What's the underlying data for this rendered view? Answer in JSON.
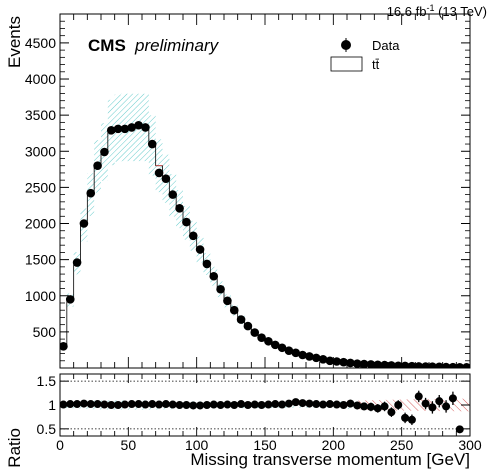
{
  "header": {
    "lumi_value": "16.6 fb",
    "lumi_exp": "-1",
    "lumi_energy": " (13 TeV)"
  },
  "label": {
    "cms": "CMS",
    "prelim": "preliminary"
  },
  "legend": {
    "position": "top-right",
    "data_label": "Data",
    "mc_label": "tt̄"
  },
  "colors": {
    "data": "#000000",
    "mc_line": "#cc2222",
    "unc_top": "#66cccc",
    "unc_ratio_a": "#66cccc",
    "unc_ratio_b": "#cc3333"
  },
  "chart_data": [
    {
      "type": "bar",
      "panel": "main",
      "ylabel": "Events",
      "xlim": [
        0,
        300
      ],
      "ylim": [
        0,
        4900
      ],
      "yticks": [
        500,
        1000,
        1500,
        2000,
        2500,
        3000,
        3500,
        4000,
        4500
      ],
      "yticklabels": [
        "500",
        "1000",
        "1500",
        "2000",
        "2500",
        "3000",
        "3500",
        "4000",
        "4500"
      ],
      "grid": false,
      "bin_width": 5,
      "x": [
        2.5,
        7.5,
        12.5,
        17.5,
        22.5,
        27.5,
        32.5,
        37.5,
        42.5,
        47.5,
        52.5,
        57.5,
        62.5,
        67.5,
        72.5,
        77.5,
        82.5,
        87.5,
        92.5,
        97.5,
        102.5,
        107.5,
        112.5,
        117.5,
        122.5,
        127.5,
        132.5,
        137.5,
        142.5,
        147.5,
        152.5,
        157.5,
        162.5,
        167.5,
        172.5,
        177.5,
        182.5,
        187.5,
        192.5,
        197.5,
        202.5,
        207.5,
        212.5,
        217.5,
        222.5,
        227.5,
        232.5,
        237.5,
        242.5,
        247.5,
        252.5,
        257.5,
        262.5,
        267.5,
        272.5,
        277.5,
        282.5,
        287.5,
        292.5,
        297.5
      ],
      "series": [
        {
          "name": "Data",
          "values": [
            300,
            950,
            1460,
            2000,
            2420,
            2800,
            2990,
            3290,
            3310,
            3310,
            3330,
            3360,
            3330,
            3100,
            2700,
            2620,
            2400,
            2210,
            2020,
            1830,
            1640,
            1440,
            1270,
            1090,
            930,
            800,
            670,
            580,
            490,
            420,
            370,
            320,
            280,
            240,
            210,
            180,
            160,
            140,
            120,
            100,
            90,
            80,
            70,
            60,
            55,
            50,
            45,
            40,
            35,
            30,
            28,
            25,
            22,
            20,
            18,
            16,
            14,
            12,
            10,
            9
          ]
        },
        {
          "name": "tt̄",
          "values": [
            295,
            940,
            1450,
            1980,
            2400,
            2790,
            2990,
            3260,
            3320,
            3330,
            3330,
            3330,
            3330,
            3080,
            2800,
            2620,
            2390,
            2200,
            2010,
            1830,
            1640,
            1440,
            1270,
            1090,
            930,
            800,
            670,
            580,
            490,
            420,
            370,
            320,
            280,
            240,
            210,
            180,
            160,
            140,
            120,
            100,
            90,
            80,
            70,
            60,
            55,
            50,
            45,
            40,
            35,
            30,
            28,
            25,
            22,
            20,
            18,
            16,
            14,
            12,
            10,
            9
          ]
        }
      ]
    },
    {
      "type": "scatter",
      "panel": "ratio",
      "xlabel": "Missing transverse momentum [GeV]",
      "ylabel": "Ratio",
      "xlim": [
        0,
        300
      ],
      "ylim": [
        0.35,
        1.65
      ],
      "yticks": [
        0.5,
        1,
        1.5
      ],
      "yticklabels": [
        "0.5",
        "1",
        "1.5"
      ],
      "xticks": [
        0,
        50,
        100,
        150,
        200,
        250,
        300
      ],
      "xticklabels": [
        "0",
        "50",
        "100",
        "150",
        "200",
        "250",
        "300"
      ],
      "x": [
        2.5,
        7.5,
        12.5,
        17.5,
        22.5,
        27.5,
        32.5,
        37.5,
        42.5,
        47.5,
        52.5,
        57.5,
        62.5,
        67.5,
        72.5,
        77.5,
        82.5,
        87.5,
        92.5,
        97.5,
        102.5,
        107.5,
        112.5,
        117.5,
        122.5,
        127.5,
        132.5,
        137.5,
        142.5,
        147.5,
        152.5,
        157.5,
        162.5,
        167.5,
        172.5,
        177.5,
        182.5,
        187.5,
        192.5,
        197.5,
        202.5,
        207.5,
        212.5,
        217.5,
        222.5,
        227.5,
        232.5,
        237.5,
        242.5,
        247.5,
        252.5,
        257.5,
        262.5,
        267.5,
        272.5,
        277.5,
        282.5,
        287.5,
        292.5
      ],
      "values": [
        1.01,
        1.02,
        1.02,
        1.03,
        1.02,
        1.02,
        1.01,
        1.0,
        1.0,
        1.01,
        1.02,
        1.02,
        1.01,
        1.02,
        1.01,
        1.02,
        1.01,
        1.0,
        1.0,
        0.99,
        0.99,
        1.0,
        1.01,
        1.0,
        1.01,
        1.0,
        1.02,
        1.0,
        1.01,
        1.0,
        1.01,
        1.02,
        1.01,
        1.03,
        1.06,
        1.04,
        1.03,
        1.02,
        1.01,
        1.02,
        1.01,
        1.0,
        1.03,
        0.99,
        0.97,
        0.96,
        0.93,
        0.97,
        0.85,
        1.0,
        0.73,
        0.69,
        1.18,
        1.03,
        0.95,
        1.08,
        0.97,
        1.14,
        0.49
      ],
      "errors": [
        0.02,
        0.02,
        0.02,
        0.02,
        0.02,
        0.02,
        0.02,
        0.02,
        0.02,
        0.02,
        0.02,
        0.02,
        0.02,
        0.02,
        0.02,
        0.02,
        0.02,
        0.02,
        0.02,
        0.02,
        0.02,
        0.02,
        0.02,
        0.02,
        0.02,
        0.03,
        0.03,
        0.03,
        0.03,
        0.03,
        0.04,
        0.04,
        0.04,
        0.05,
        0.05,
        0.05,
        0.06,
        0.06,
        0.06,
        0.07,
        0.07,
        0.07,
        0.08,
        0.08,
        0.08,
        0.09,
        0.09,
        0.1,
        0.1,
        0.1,
        0.11,
        0.11,
        0.12,
        0.12,
        0.13,
        0.13,
        0.13,
        0.14,
        0.06
      ],
      "reference_lines": [
        0.5,
        1.5
      ]
    }
  ]
}
